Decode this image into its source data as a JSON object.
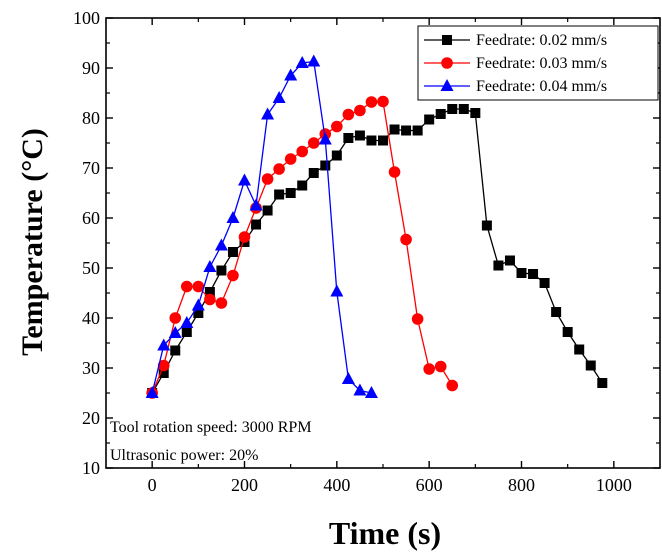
{
  "chart_data": {
    "type": "line",
    "xlabel": "Time (s)",
    "ylabel": "Temperature (°C)",
    "xlim": [
      -100,
      1100
    ],
    "ylim": [
      10,
      100
    ],
    "xticks": [
      0,
      200,
      400,
      600,
      800,
      1000
    ],
    "yticks": [
      10,
      20,
      30,
      40,
      50,
      60,
      70,
      80,
      90,
      100
    ],
    "grid": false,
    "legend_position": "top-right",
    "annotations": [
      "Tool rotation speed: 3000 RPM",
      "Ultrasonic power: 20%"
    ],
    "series": [
      {
        "name": "Feedrate: 0.02 mm/s",
        "color": "#000000",
        "marker": "square",
        "x": [
          0,
          25,
          50,
          75,
          100,
          125,
          150,
          175,
          200,
          225,
          250,
          275,
          300,
          325,
          350,
          375,
          400,
          425,
          450,
          475,
          500,
          525,
          550,
          575,
          600,
          625,
          650,
          675,
          700,
          725,
          750,
          775,
          800,
          825,
          850,
          875,
          900,
          925,
          950,
          975
        ],
        "y": [
          25,
          29,
          33.5,
          37.2,
          41,
          45.2,
          49.5,
          53.2,
          55.2,
          58.7,
          61.5,
          64.7,
          65,
          66.5,
          69,
          70.5,
          72.5,
          76,
          76.5,
          75.5,
          75.5,
          77.7,
          77.5,
          77.5,
          79.7,
          80.8,
          81.8,
          81.8,
          81,
          58.5,
          50.5,
          51.5,
          49,
          48.8,
          47,
          41.2,
          37.2,
          33.7,
          30.5,
          27
        ]
      },
      {
        "name": "Feedrate: 0.03 mm/s",
        "color": "#ff0000",
        "marker": "circle",
        "x": [
          0,
          25,
          50,
          75,
          100,
          125,
          150,
          175,
          200,
          225,
          250,
          275,
          300,
          325,
          350,
          375,
          400,
          425,
          450,
          475,
          500,
          525,
          550,
          575,
          600,
          625,
          650
        ],
        "y": [
          25,
          30.5,
          40,
          46.3,
          46.3,
          43.7,
          43,
          48.5,
          56.2,
          62,
          67.8,
          69.8,
          71.8,
          73.3,
          75,
          76.8,
          78.3,
          80.7,
          81.5,
          83.2,
          83.3,
          69.2,
          55.7,
          39.8,
          29.8,
          30.3,
          26.5
        ]
      },
      {
        "name": "Feedrate: 0.04 mm/s",
        "color": "#0000ff",
        "marker": "triangle",
        "x": [
          0,
          25,
          50,
          75,
          100,
          125,
          150,
          175,
          200,
          225,
          250,
          275,
          300,
          325,
          350,
          375,
          400,
          425,
          450,
          475
        ],
        "y": [
          25,
          34.5,
          37,
          39,
          42.5,
          50.2,
          54.5,
          60,
          67.5,
          62.5,
          80.7,
          84,
          88.5,
          91,
          91.3,
          75.7,
          45.3,
          27.8,
          25.5,
          25
        ]
      }
    ]
  }
}
